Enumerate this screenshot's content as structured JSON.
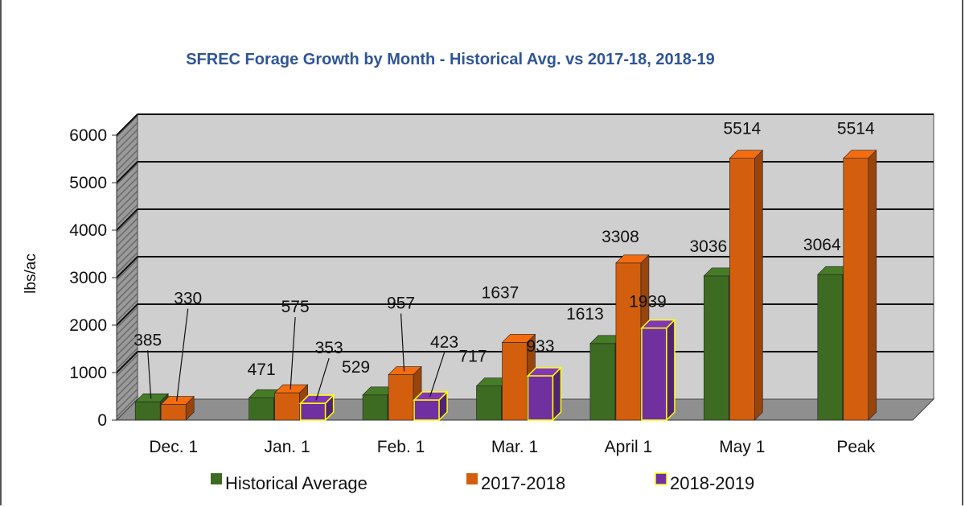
{
  "chart_data": {
    "type": "bar",
    "title": "SFREC  Forage Growth by Month - Historical Avg. vs 2017-18, 2018-19",
    "ylabel": "lbs/ac",
    "xlabel": "",
    "ylim": [
      0,
      6000
    ],
    "yticks": [
      0,
      1000,
      2000,
      3000,
      4000,
      5000,
      6000
    ],
    "grid": true,
    "legend_position": "bottom",
    "categories": [
      "Dec. 1",
      "Jan. 1",
      "Feb. 1",
      "Mar. 1",
      "April 1",
      "May 1",
      "Peak"
    ],
    "series": [
      {
        "name": "Historical Average",
        "color": "#3d6b22",
        "values": [
          385,
          471,
          529,
          717,
          1613,
          3036,
          3064
        ]
      },
      {
        "name": "2017-2018",
        "color": "#d35f0e",
        "values": [
          330,
          575,
          957,
          1637,
          3308,
          5514,
          5514
        ]
      },
      {
        "name": "2018-2019",
        "color": "#7030a0",
        "outline": "#ffff00",
        "values": [
          null,
          353,
          423,
          933,
          1939,
          null,
          null
        ]
      }
    ]
  }
}
